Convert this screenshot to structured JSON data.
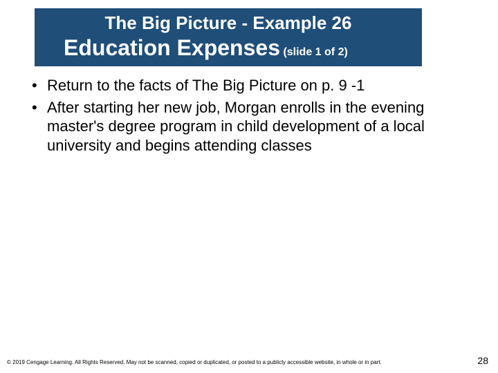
{
  "colors": {
    "title_bg": "#1f4e79",
    "title_text": "#ffffff",
    "body_text": "#000000",
    "background": "#ffffff"
  },
  "typography": {
    "title_line1_fontsize": 26,
    "title_line2_fontsize": 32,
    "title_sub_fontsize": 16,
    "body_fontsize": 22,
    "footer_fontsize": 8,
    "pagenum_fontsize": 14,
    "font_family": "Arial"
  },
  "title": {
    "line1": "The Big Picture - Example 26",
    "line2": "Education Expenses",
    "sub": "(slide 1 of 2)"
  },
  "bullets": [
    "Return to the facts of The Big Picture on p. 9 -1",
    "After starting her new job, Morgan enrolls in the evening master's degree program in child development of a local university and begins attending classes"
  ],
  "footer": "© 2019 Cengage Learning. All Rights Reserved. May not be scanned, copied or duplicated, or posted to a publicly accessible website, in whole or in part.",
  "page_number": "28"
}
